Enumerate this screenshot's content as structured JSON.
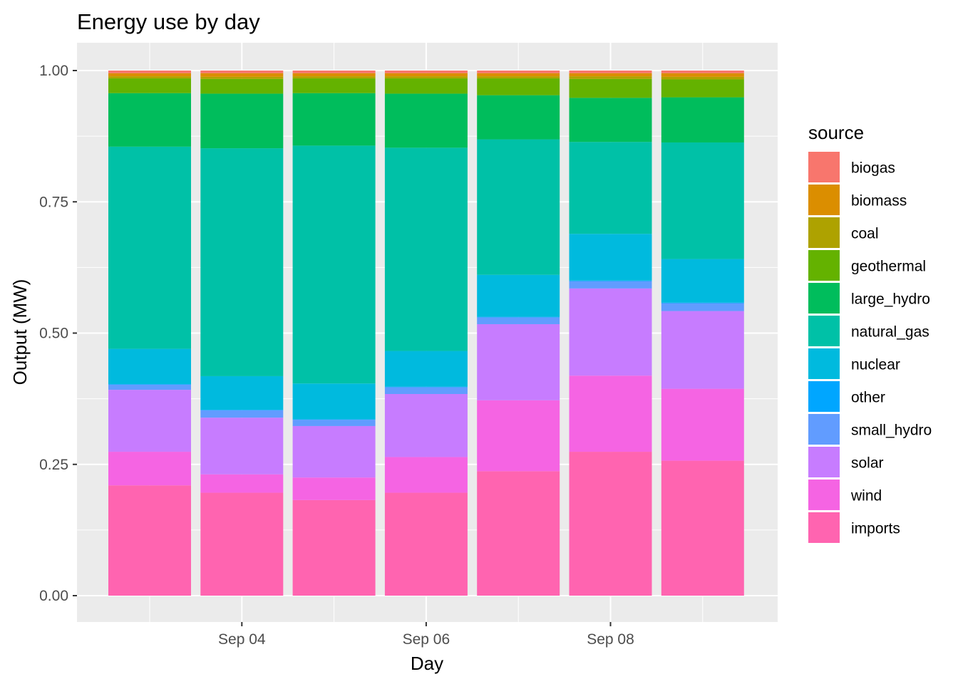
{
  "chart_data": {
    "type": "bar",
    "stacking": "fill",
    "title": "Energy use by day",
    "xlabel": "Day",
    "ylabel": "Output (MW)",
    "ylim": [
      0,
      1
    ],
    "y_ticks": [
      "0.00",
      "0.25",
      "0.50",
      "0.75",
      "1.00"
    ],
    "x_tick_labels": [
      "Sep 04",
      "Sep 06",
      "Sep 08"
    ],
    "categories": [
      "Sep 03",
      "Sep 04",
      "Sep 05",
      "Sep 06",
      "Sep 07",
      "Sep 08",
      "Sep 09"
    ],
    "grid": true,
    "legend": {
      "title": "source",
      "placement": "right"
    },
    "series": [
      {
        "name": "biogas",
        "color": "#F8766D",
        "values": [
          0.005,
          0.005,
          0.005,
          0.005,
          0.005,
          0.005,
          0.005
        ]
      },
      {
        "name": "biomass",
        "color": "#DB8E00",
        "values": [
          0.006,
          0.007,
          0.006,
          0.006,
          0.006,
          0.006,
          0.007
        ]
      },
      {
        "name": "coal",
        "color": "#AEA200",
        "values": [
          0.004,
          0.004,
          0.004,
          0.004,
          0.004,
          0.005,
          0.005
        ]
      },
      {
        "name": "geothermal",
        "color": "#64B200",
        "values": [
          0.028,
          0.028,
          0.028,
          0.029,
          0.032,
          0.036,
          0.034
        ]
      },
      {
        "name": "large_hydro",
        "color": "#00BD5C",
        "values": [
          0.102,
          0.104,
          0.1,
          0.103,
          0.084,
          0.084,
          0.086
        ]
      },
      {
        "name": "natural_gas",
        "color": "#00C1A7",
        "values": [
          0.385,
          0.434,
          0.453,
          0.387,
          0.258,
          0.175,
          0.222
        ]
      },
      {
        "name": "nuclear",
        "color": "#00BADE",
        "values": [
          0.067,
          0.064,
          0.068,
          0.068,
          0.08,
          0.089,
          0.083
        ]
      },
      {
        "name": "other",
        "color": "#00A6FF",
        "values": [
          0.001,
          0.001,
          0.001,
          0.001,
          0.001,
          0.001,
          0.001
        ]
      },
      {
        "name": "small_hydro",
        "color": "#619CFF",
        "values": [
          0.01,
          0.014,
          0.012,
          0.013,
          0.013,
          0.014,
          0.015
        ]
      },
      {
        "name": "solar",
        "color": "#C77CFF",
        "values": [
          0.118,
          0.108,
          0.098,
          0.12,
          0.145,
          0.166,
          0.148
        ]
      },
      {
        "name": "wind",
        "color": "#F564E3",
        "values": [
          0.064,
          0.035,
          0.043,
          0.068,
          0.135,
          0.145,
          0.137
        ]
      },
      {
        "name": "imports",
        "color": "#FF64B0",
        "values": [
          0.21,
          0.196,
          0.182,
          0.196,
          0.237,
          0.274,
          0.257
        ]
      }
    ]
  }
}
